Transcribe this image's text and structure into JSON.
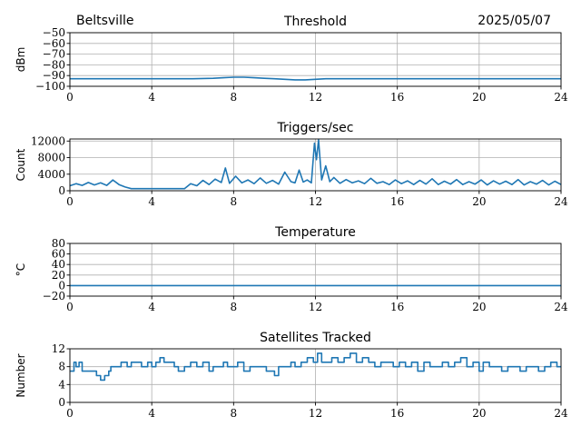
{
  "header": {
    "station": "Beltsville",
    "date": "2025/05/07"
  },
  "chart_data": [
    {
      "type": "line",
      "title": "Threshold",
      "ylabel": "dBm",
      "xlim": [
        0,
        24
      ],
      "ylim": [
        -100,
        -50
      ],
      "xticks": [
        0,
        4,
        8,
        12,
        16,
        20,
        24
      ],
      "yticks": [
        -100,
        -90,
        -80,
        -70,
        -60,
        -50
      ],
      "grid": true,
      "color": "#1f77b4",
      "series": [
        {
          "x": [
            0,
            2,
            4,
            6,
            7,
            7.5,
            8,
            8.5,
            9,
            9.5,
            10,
            10.5,
            11,
            11.5,
            12,
            12.5,
            13,
            14,
            16,
            18,
            20,
            22,
            24
          ],
          "values": [
            -93,
            -93,
            -93,
            -93,
            -92.5,
            -92,
            -91.5,
            -91.5,
            -92,
            -92.5,
            -93,
            -93.5,
            -94,
            -94,
            -93.5,
            -93,
            -93,
            -93,
            -93,
            -93,
            -93,
            -93,
            -93
          ]
        }
      ]
    },
    {
      "type": "line",
      "title": "Triggers/sec",
      "ylabel": "Count",
      "xlim": [
        0,
        24
      ],
      "ylim": [
        0,
        12500
      ],
      "xticks": [
        0,
        4,
        8,
        12,
        16,
        20,
        24
      ],
      "yticks": [
        0,
        4000,
        8000,
        12000
      ],
      "grid": true,
      "color": "#1f77b4",
      "series": [
        {
          "x": [
            0,
            0.3,
            0.6,
            0.9,
            1.2,
            1.5,
            1.8,
            2.1,
            2.4,
            2.7,
            3.0,
            3.3,
            3.6,
            4.0,
            4.4,
            4.8,
            5.2,
            5.6,
            5.9,
            6.2,
            6.5,
            6.8,
            7.1,
            7.4,
            7.6,
            7.8,
            8.1,
            8.4,
            8.7,
            9.0,
            9.3,
            9.6,
            9.9,
            10.2,
            10.5,
            10.8,
            11.0,
            11.2,
            11.4,
            11.6,
            11.8,
            11.95,
            12.05,
            12.15,
            12.3,
            12.5,
            12.7,
            12.9,
            13.2,
            13.5,
            13.8,
            14.1,
            14.4,
            14.7,
            15.0,
            15.3,
            15.6,
            15.9,
            16.2,
            16.5,
            16.8,
            17.1,
            17.4,
            17.7,
            18.0,
            18.3,
            18.6,
            18.9,
            19.2,
            19.5,
            19.8,
            20.1,
            20.4,
            20.7,
            21.0,
            21.3,
            21.6,
            21.9,
            22.2,
            22.5,
            22.8,
            23.1,
            23.4,
            23.7,
            24
          ],
          "values": [
            1200,
            1700,
            1300,
            2000,
            1400,
            1900,
            1300,
            2600,
            1500,
            900,
            500,
            500,
            500,
            500,
            500,
            500,
            500,
            500,
            1700,
            1200,
            2500,
            1500,
            2800,
            2000,
            5500,
            1800,
            3500,
            1900,
            2600,
            1700,
            3100,
            1800,
            2500,
            1600,
            4500,
            2200,
            1900,
            5000,
            2100,
            2600,
            1900,
            11500,
            7500,
            12300,
            2600,
            6000,
            2200,
            3200,
            1800,
            2700,
            1900,
            2400,
            1700,
            3000,
            1800,
            2200,
            1500,
            2600,
            1700,
            2400,
            1500,
            2500,
            1600,
            2900,
            1500,
            2300,
            1600,
            2700,
            1500,
            2200,
            1600,
            2600,
            1400,
            2400,
            1600,
            2300,
            1500,
            2700,
            1400,
            2200,
            1600,
            2500,
            1400,
            2300,
            1500
          ]
        }
      ]
    },
    {
      "type": "line",
      "title": "Temperature",
      "ylabel": "°C",
      "xlim": [
        0,
        24
      ],
      "ylim": [
        -20,
        80
      ],
      "xticks": [
        0,
        4,
        8,
        12,
        16,
        20,
        24
      ],
      "yticks": [
        -20,
        0,
        20,
        40,
        60,
        80
      ],
      "grid": true,
      "color": "#1f77b4",
      "series": [
        {
          "x": [
            0,
            24
          ],
          "values": [
            0,
            0
          ]
        }
      ]
    },
    {
      "type": "line",
      "title": "Satellites Tracked",
      "ylabel": "Number",
      "xlim": [
        0,
        24
      ],
      "ylim": [
        0,
        12
      ],
      "xticks": [
        0,
        4,
        8,
        12,
        16,
        20,
        24
      ],
      "yticks": [
        0,
        4,
        8,
        12
      ],
      "grid": true,
      "color": "#1f77b4",
      "step": true,
      "series": [
        {
          "x": [
            0,
            0.2,
            0.3,
            0.45,
            0.6,
            1.0,
            1.3,
            1.5,
            1.7,
            1.9,
            2.0,
            2.2,
            2.5,
            2.8,
            3.0,
            3.3,
            3.5,
            3.8,
            4.0,
            4.2,
            4.4,
            4.6,
            4.9,
            5.1,
            5.3,
            5.6,
            5.9,
            6.2,
            6.5,
            6.8,
            7.0,
            7.3,
            7.5,
            7.7,
            8.0,
            8.2,
            8.5,
            8.8,
            9.2,
            9.6,
            10.0,
            10.2,
            10.5,
            10.8,
            11.0,
            11.3,
            11.6,
            11.9,
            12.1,
            12.3,
            12.5,
            12.8,
            13.1,
            13.4,
            13.7,
            14.0,
            14.3,
            14.6,
            14.9,
            15.2,
            15.5,
            15.8,
            16.1,
            16.4,
            16.7,
            17.0,
            17.3,
            17.6,
            17.9,
            18.2,
            18.5,
            18.8,
            19.1,
            19.4,
            19.7,
            20.0,
            20.2,
            20.5,
            20.8,
            21.1,
            21.4,
            21.7,
            22.0,
            22.3,
            22.6,
            22.9,
            23.2,
            23.5,
            23.8,
            24
          ],
          "values": [
            7,
            9,
            8,
            9,
            7,
            7,
            6,
            5,
            6,
            7,
            8,
            8,
            9,
            8,
            9,
            9,
            8,
            9,
            8,
            9,
            10,
            9,
            9,
            8,
            7,
            8,
            9,
            8,
            9,
            7,
            8,
            8,
            9,
            8,
            8,
            9,
            7,
            8,
            8,
            7,
            6,
            8,
            8,
            9,
            8,
            9,
            10,
            9,
            11,
            9,
            9,
            10,
            9,
            10,
            11,
            9,
            10,
            9,
            8,
            9,
            9,
            8,
            9,
            8,
            9,
            7,
            9,
            8,
            8,
            9,
            8,
            9,
            10,
            8,
            9,
            7,
            9,
            8,
            8,
            7,
            8,
            8,
            7,
            8,
            8,
            7,
            8,
            9,
            8,
            8
          ]
        }
      ]
    }
  ]
}
